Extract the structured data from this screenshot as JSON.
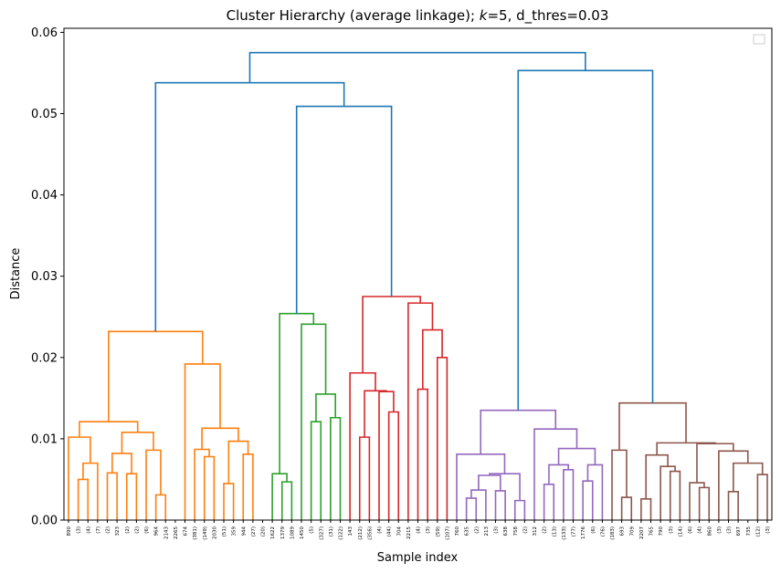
{
  "chart_data": {
    "type": "dendrogram",
    "title": "Cluster Hierarchy (average linkage); k=5, d_thres=0.03",
    "title_parts": {
      "prefix": "Cluster Hierarchy (average linkage); ",
      "k_symbol": "k",
      "suffix": "=5, d_thres=0.03"
    },
    "xlabel": "Sample index",
    "ylabel": "Distance",
    "ylim": [
      0,
      0.0605
    ],
    "yticks": [
      "0.00",
      "0.01",
      "0.02",
      "0.03",
      "0.04",
      "0.05",
      "0.06"
    ],
    "ytick_values": [
      0,
      0.01,
      0.02,
      0.03,
      0.04,
      0.05,
      0.06
    ],
    "legend": {
      "placement": "top-right",
      "entries": []
    },
    "colors": {
      "above_threshold": "#1f77b4",
      "cluster_1": "#ff7f0e",
      "cluster_2": "#2ca02c",
      "cluster_3": "#d62728",
      "cluster_4": "#9467bd",
      "cluster_5": "#8c564b"
    },
    "leaf_labels": [
      "890",
      "(3)",
      "(4)",
      "(7)",
      "(2)",
      "323",
      "(2)",
      "(2)",
      "(6)",
      "964",
      "2143",
      "2265",
      "674",
      "(381)",
      "(149)",
      "2030",
      "(51)",
      "359",
      "944",
      "(27)",
      "(20)",
      "1622",
      "1379",
      "1089",
      "1450",
      "(5)",
      "(327)",
      "(31)",
      "(122)",
      "143",
      "(212)",
      "(356)",
      "(4)",
      "(44)",
      "704",
      "2215",
      "(4)",
      "(3)",
      "(59)",
      "(107)",
      "760",
      "635",
      "(2)",
      "213",
      "(3)",
      "638",
      "758",
      "(2)",
      "312",
      "(2)",
      "(13)",
      "(133)",
      "(77)",
      "1776",
      "(6)",
      "(76)",
      "(183)",
      "693",
      "709",
      "2207",
      "765",
      "790",
      "(3)",
      "(14)",
      "(6)",
      "(4)",
      "860",
      "(3)",
      "(3)",
      "697",
      "735",
      "(12)",
      "(3)"
    ],
    "merges": [
      {
        "left": "L0",
        "right": "L1",
        "height": 0.0
      },
      {
        "id": "o1",
        "children": [
          "L1",
          "L2"
        ],
        "height": 0.005
      },
      {
        "id": "o2",
        "children": [
          "o1",
          "L3"
        ],
        "height": 0.007
      },
      {
        "id": "o3",
        "children": [
          "L0",
          "o2"
        ],
        "height": 0.0102
      },
      {
        "id": "o4",
        "children": [
          "L4",
          "L5"
        ],
        "height": 0.0058
      },
      {
        "id": "o5",
        "children": [
          "L6",
          "L7"
        ],
        "height": 0.0057
      },
      {
        "id": "o6",
        "children": [
          "o4",
          "o5"
        ],
        "height": 0.0082
      },
      {
        "id": "o7",
        "children": [
          "L8",
          "L9"
        ],
        "height": 0.0058
      },
      {
        "id": "o8",
        "children": [
          "L10",
          "L11"
        ],
        "height": 0.0031
      },
      {
        "id": "o9",
        "children": [
          "L9b",
          "o8"
        ],
        "height": 0.0086
      },
      {
        "id": "o10",
        "children": [
          "o6",
          "o9"
        ],
        "height": 0.0108
      },
      {
        "id": "o11",
        "children": [
          "o3",
          "o10"
        ],
        "height": 0.0121
      },
      {
        "id": "o12",
        "children": [
          "L15",
          "L16"
        ],
        "height": 0.0078
      },
      {
        "id": "o13",
        "children": [
          "L14",
          "o12"
        ],
        "height": 0.0087
      },
      {
        "id": "o14",
        "children": [
          "L13",
          "o13"
        ],
        "height": 0.0068
      },
      {
        "id": "o15",
        "children": [
          "L17",
          "L18"
        ],
        "height": 0.0045
      },
      {
        "id": "o16",
        "children": [
          "L19",
          "L20"
        ],
        "height": 0.0081
      },
      {
        "id": "o17",
        "children": [
          "o15",
          "o16"
        ],
        "height": 0.0097
      },
      {
        "id": "o18",
        "children": [
          "o13",
          "o17"
        ],
        "height": 0.0113
      },
      {
        "id": "o19",
        "children": [
          "L12",
          "o18"
        ],
        "height": 0.0192
      },
      {
        "id": "o20",
        "children": [
          "o11",
          "o19"
        ],
        "height": 0.0232
      },
      {
        "id": "g1",
        "children": [
          "L22",
          "L23"
        ],
        "height": 0.0047
      },
      {
        "id": "g2",
        "children": [
          "L21",
          "g1"
        ],
        "height": 0.0057
      },
      {
        "id": "g3",
        "children": [
          "L25",
          "L26"
        ],
        "height": 0.0121
      },
      {
        "id": "g4",
        "children": [
          "L27",
          "L28"
        ],
        "height": 0.0126
      },
      {
        "id": "g5",
        "children": [
          "g3",
          "g4"
        ],
        "height": 0.0155
      },
      {
        "id": "g6",
        "children": [
          "L24",
          "g5"
        ],
        "height": 0.0241
      },
      {
        "id": "g7",
        "children": [
          "g2",
          "g6"
        ],
        "height": 0.0254
      },
      {
        "id": "r1",
        "children": [
          "L30",
          "L31"
        ],
        "height": 0.0102
      },
      {
        "id": "r2",
        "children": [
          "L32",
          "L33"
        ],
        "height": 0.0133
      },
      {
        "id": "r3",
        "children": [
          "L31b",
          "r2"
        ],
        "height": 0.0158
      },
      {
        "id": "r4",
        "children": [
          "r1",
          "r3"
        ],
        "height": 0.0181
      },
      {
        "id": "r5",
        "children": [
          "L36",
          "L37"
        ],
        "height": 0.0161
      },
      {
        "id": "r6",
        "children": [
          "L38",
          "L39"
        ],
        "height": 0.02
      },
      {
        "id": "r7",
        "children": [
          "r5",
          "r6"
        ],
        "height": 0.0234
      },
      {
        "id": "r8",
        "children": [
          "L35",
          "r7"
        ],
        "height": 0.0267
      },
      {
        "id": "r9",
        "children": [
          "r4",
          "r8"
        ],
        "height": 0.0275
      },
      {
        "id": "top1",
        "children": [
          "g7",
          "r9"
        ],
        "height": 0.0509
      },
      {
        "id": "top2",
        "children": [
          "o20",
          "top1"
        ],
        "height": 0.0538
      },
      {
        "id": "p1",
        "children": [
          "L42",
          "L43"
        ],
        "height": 0.0037
      },
      {
        "id": "p2",
        "children": [
          "L41",
          "p1"
        ],
        "height": 0.0027
      },
      {
        "id": "p3",
        "children": [
          "L45",
          "L46"
        ],
        "height": 0.0036
      },
      {
        "id": "p4",
        "children": [
          "p2",
          "p3"
        ],
        "height": 0.0055
      },
      {
        "id": "p5",
        "children": [
          "L40",
          "p4"
        ],
        "height": 0.0081
      },
      {
        "id": "p6",
        "children": [
          "L50",
          "L51"
        ],
        "height": 0.0068
      },
      {
        "id": "p7",
        "children": [
          "L53",
          "L54"
        ],
        "height": 0.0068
      },
      {
        "id": "p8",
        "children": [
          "p6",
          "p7"
        ],
        "height": 0.0088
      },
      {
        "id": "p9",
        "children": [
          "L49",
          "p8"
        ],
        "height": 0.0112
      },
      {
        "id": "p10",
        "children": [
          "p5",
          "p9"
        ],
        "height": 0.0135
      },
      {
        "id": "b1",
        "children": [
          "L58",
          "L59"
        ],
        "height": 0.0028
      },
      {
        "id": "b2",
        "children": [
          "L57",
          "b1"
        ],
        "height": 0.0086
      },
      {
        "id": "b3",
        "children": [
          "L63",
          "L64"
        ],
        "height": 0.0066
      },
      {
        "id": "b4",
        "children": [
          "L62",
          "b3"
        ],
        "height": 0.008
      },
      {
        "id": "b5",
        "children": [
          "L66",
          "L67"
        ],
        "height": 0.0046
      },
      {
        "id": "b6",
        "children": [
          "L69",
          "L70"
        ],
        "height": 0.007
      },
      {
        "id": "b7",
        "children": [
          "b5",
          "b6"
        ],
        "height": 0.0085
      },
      {
        "id": "b8",
        "children": [
          "b4",
          "b7"
        ],
        "height": 0.0095
      },
      {
        "id": "b9",
        "children": [
          "b2",
          "b8"
        ],
        "height": 0.0144
      },
      {
        "id": "top3",
        "children": [
          "p10",
          "b9"
        ],
        "height": 0.0553
      },
      {
        "id": "root",
        "children": [
          "top2",
          "top3"
        ],
        "height": 0.0575
      }
    ],
    "grid": false
  }
}
